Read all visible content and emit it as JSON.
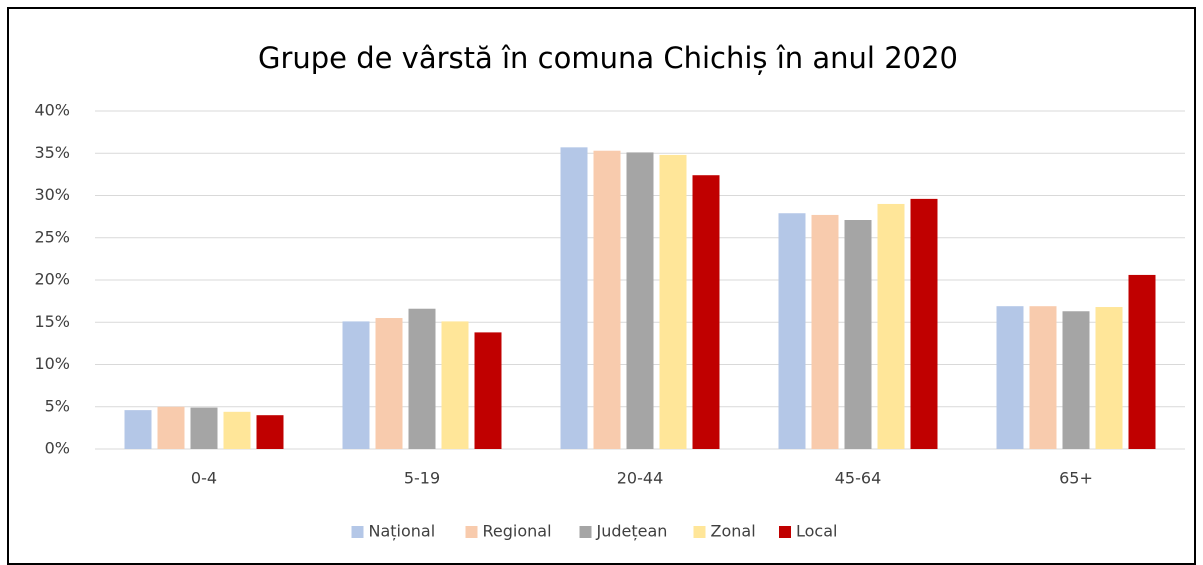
{
  "chart_data": {
    "type": "bar",
    "title": "Grupe de vârstă în comuna Chichiș în anul 2020",
    "categories": [
      "0-4",
      "5-19",
      "20-44",
      "45-64",
      "65+"
    ],
    "series": [
      {
        "name": "Național",
        "color": "#b4c7e7",
        "values": [
          4.6,
          15.1,
          35.7,
          27.9,
          16.9
        ]
      },
      {
        "name": "Regional",
        "color": "#f8cbad",
        "values": [
          5.0,
          15.5,
          35.3,
          27.7,
          16.9
        ]
      },
      {
        "name": "Județean",
        "color": "#a5a5a5",
        "values": [
          4.9,
          16.6,
          35.1,
          27.1,
          16.3
        ]
      },
      {
        "name": "Zonal",
        "color": "#ffe699",
        "values": [
          4.4,
          15.1,
          34.8,
          29.0,
          16.8
        ]
      },
      {
        "name": "Local",
        "color": "#c00000",
        "values": [
          4.0,
          13.8,
          32.4,
          29.6,
          20.6
        ]
      }
    ],
    "ylim": [
      0,
      40
    ],
    "yticks": [
      {
        "value": 0,
        "label": "0%"
      },
      {
        "value": 5,
        "label": "5%"
      },
      {
        "value": 10,
        "label": "10%"
      },
      {
        "value": 15,
        "label": "15%"
      },
      {
        "value": 20,
        "label": "20%"
      },
      {
        "value": 25,
        "label": "25%"
      },
      {
        "value": 30,
        "label": "30%"
      },
      {
        "value": 35,
        "label": "35%"
      },
      {
        "value": 40,
        "label": "40%"
      }
    ],
    "grid": true,
    "legend": "bottom"
  }
}
